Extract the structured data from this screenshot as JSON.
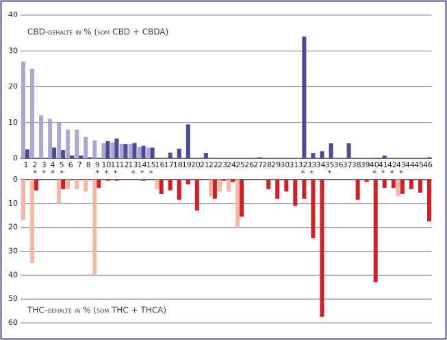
{
  "chart_data": [
    {
      "type": "bar",
      "title": "CBD-gehalte in % (som CBD + CBDA)",
      "categories": [
        "1",
        "2",
        "3",
        "4",
        "5",
        "6",
        "7",
        "8",
        "9",
        "10",
        "11",
        "12",
        "13",
        "14",
        "15",
        "16",
        "17",
        "18",
        "19",
        "20",
        "21",
        "22",
        "23",
        "24",
        "25",
        "26",
        "27",
        "28",
        "29",
        "30",
        "31",
        "32",
        "33",
        "34",
        "35",
        "36",
        "37",
        "38",
        "39",
        "40",
        "41",
        "42",
        "43",
        "44",
        "45",
        "46"
      ],
      "category_notes": [
        null,
        "*",
        "*",
        "*",
        "*",
        null,
        null,
        null,
        "*",
        "*",
        "*",
        null,
        "*",
        "*",
        "*",
        null,
        null,
        null,
        null,
        null,
        null,
        null,
        null,
        null,
        null,
        null,
        null,
        null,
        null,
        null,
        null,
        "*",
        "*",
        null,
        "*",
        null,
        null,
        null,
        null,
        "*",
        "*",
        "*",
        "*",
        null,
        null,
        null
      ],
      "series": [
        {
          "color": "#aaa7d3",
          "values": [
            27,
            25,
            12,
            11,
            10,
            8,
            8,
            6,
            5,
            4.2,
            4.5,
            4,
            4,
            3.2,
            3,
            0,
            0,
            0,
            0,
            0,
            0,
            0,
            0,
            0,
            0,
            0,
            0,
            0,
            0,
            0,
            0,
            0,
            0,
            0,
            0,
            0,
            0,
            0,
            0,
            0,
            0,
            0,
            0,
            0,
            0,
            0
          ]
        },
        {
          "color": "#4f4a94",
          "values": [
            2.5,
            0,
            0,
            3,
            2.3,
            0.8,
            0.8,
            0.3,
            0,
            4.8,
            5.5,
            4,
            4.3,
            3.5,
            3,
            0,
            1.6,
            2.7,
            9.5,
            0,
            1.5,
            0,
            0,
            0,
            0,
            0,
            0.3,
            0,
            0,
            0,
            0,
            34,
            1.5,
            2,
            4.2,
            0,
            4.2,
            0,
            0,
            0.2,
            0.8,
            0,
            0,
            0,
            0,
            0.3
          ]
        }
      ],
      "ylim": [
        0,
        40
      ],
      "yticks": [
        0,
        10,
        20,
        30,
        40
      ],
      "grid": true
    },
    {
      "type": "bar",
      "title": "THC-gehalte in % (som THC + THCA)",
      "inverted": true,
      "series": [
        {
          "color": "#f3b8a5",
          "values": [
            17,
            35,
            0,
            0,
            10,
            4,
            4,
            5,
            40,
            0,
            0,
            0,
            0,
            0,
            0,
            4,
            0,
            0,
            0,
            0,
            0,
            7,
            5,
            5,
            20,
            0,
            0,
            0,
            0,
            0,
            0,
            0,
            0,
            0,
            0,
            0,
            0,
            0,
            0,
            0,
            0,
            0,
            7,
            0,
            0,
            0
          ]
        },
        {
          "color": "#d2202b",
          "values": [
            0,
            4.5,
            0,
            0,
            4,
            0,
            0,
            0,
            3.5,
            0.5,
            0.5,
            0,
            0,
            0.5,
            0,
            6,
            4.5,
            8.5,
            2,
            13,
            0,
            8,
            0.5,
            1,
            15.5,
            0,
            0,
            4,
            8,
            5,
            11,
            8,
            24.5,
            57.5,
            0,
            0,
            0,
            8.5,
            1,
            43,
            3.5,
            3.5,
            6,
            4,
            5.5,
            17.5
          ]
        }
      ],
      "ylim": [
        0,
        60
      ],
      "yticks": [
        0,
        10,
        20,
        30,
        40,
        50,
        60
      ],
      "grid": true
    }
  ]
}
